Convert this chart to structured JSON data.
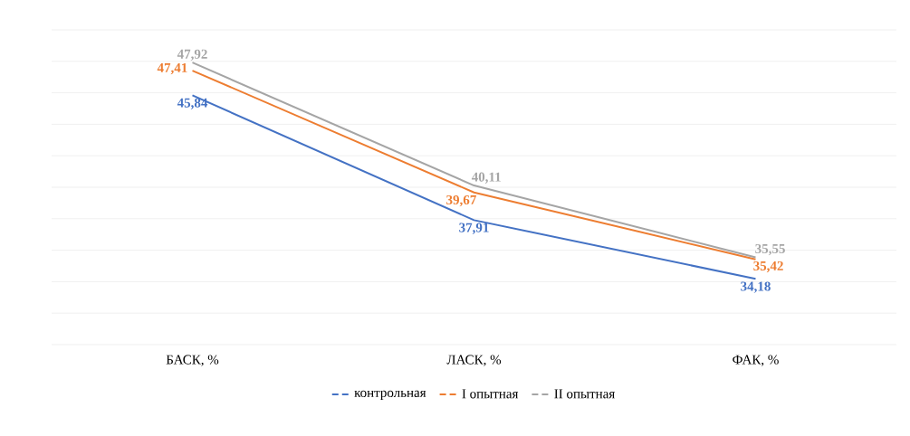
{
  "chart_data": {
    "type": "line",
    "categories": [
      "БАСК, %",
      "ЛАСК, %",
      "ФАК, %"
    ],
    "series": [
      {
        "name": "контрольная",
        "color": "#4472c4",
        "values": [
          45.84,
          37.91,
          34.18
        ],
        "value_labels": [
          "45,84",
          "37,91",
          "34,18"
        ]
      },
      {
        "name": "I опытная",
        "color": "#ed7d31",
        "values": [
          47.41,
          39.67,
          35.42
        ],
        "value_labels": [
          "47,41",
          "39,67",
          "35,42"
        ]
      },
      {
        "name": "II опытная",
        "color": "#a5a5a5",
        "values": [
          47.92,
          40.11,
          35.55
        ],
        "value_labels": [
          "47,92",
          "40,11",
          "35,55"
        ]
      }
    ],
    "ylim": [
      30,
      50
    ],
    "yticks": [
      {
        "value": 30,
        "label": null
      },
      {
        "value": 32,
        "label": null
      },
      {
        "value": 34,
        "label": null
      },
      {
        "value": 36,
        "label": null
      },
      {
        "value": 38,
        "label": null
      },
      {
        "value": 40,
        "label": null
      },
      {
        "value": 42,
        "label": null
      },
      {
        "value": 44,
        "label": null
      },
      {
        "value": 46,
        "label": null
      },
      {
        "value": 48,
        "label": null
      },
      {
        "value": 50,
        "label": null
      }
    ],
    "grid": "y",
    "legend": "bottom",
    "marker": "none",
    "line_style": "solid",
    "tick_labels": "x"
  }
}
